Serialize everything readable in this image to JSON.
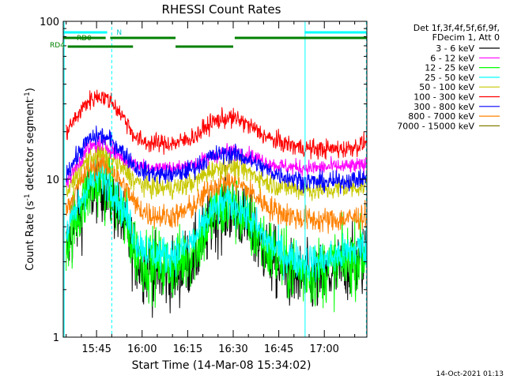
{
  "chart_data": {
    "type": "line",
    "title": "RHESSI Count Rates",
    "xlabel": "Start Time (14-Mar-08 15:34:02)",
    "ylabel_parts": [
      "Count Rate (s",
      "-1",
      " detector segment",
      "-1",
      ")"
    ],
    "yscale": "log",
    "ylim": [
      1,
      100
    ],
    "x_tick_labels": [
      "15:45",
      "16:00",
      "16:15",
      "16:30",
      "16:45",
      "17:00"
    ],
    "y_tick_labels": [
      "1",
      "10",
      "100"
    ],
    "time_axis": {
      "start": "15:34:02",
      "end": "17:14:00"
    },
    "legend_header": [
      "Det 1f,3f,4f,5f,6f,9f,",
      "FDecim 1, Att 0"
    ],
    "series": [
      {
        "name": "3 - 6 keV",
        "color": "#000000",
        "noise": 0.22,
        "profile": [
          [
            "15:35",
            3.6
          ],
          [
            "15:42",
            7.8
          ],
          [
            "15:46",
            9.5
          ],
          [
            "15:50",
            7.5
          ],
          [
            "15:55",
            4.5
          ],
          [
            "15:58",
            3.2
          ],
          [
            "16:02",
            2.6
          ],
          [
            "16:07",
            2.5
          ],
          [
            "16:12",
            2.6
          ],
          [
            "16:18",
            3.4
          ],
          [
            "16:23",
            5.5
          ],
          [
            "16:28",
            6.5
          ],
          [
            "16:32",
            6.0
          ],
          [
            "16:37",
            4.4
          ],
          [
            "16:42",
            3.2
          ],
          [
            "16:47",
            2.6
          ],
          [
            "16:53",
            2.3
          ],
          [
            "16:58",
            2.3
          ],
          [
            "17:03",
            2.5
          ],
          [
            "17:07",
            2.8
          ],
          [
            "17:12",
            3.0
          ],
          [
            "17:14",
            3.2
          ]
        ]
      },
      {
        "name": "6 - 12 keV",
        "color": "#ff00ff",
        "noise": 0.05,
        "profile": [
          [
            "15:35",
            9.5
          ],
          [
            "15:42",
            15.5
          ],
          [
            "15:46",
            17.0
          ],
          [
            "15:50",
            15.5
          ],
          [
            "15:55",
            13.0
          ],
          [
            "15:58",
            12.5
          ],
          [
            "16:02",
            12.0
          ],
          [
            "16:07",
            11.8
          ],
          [
            "16:12",
            11.8
          ],
          [
            "16:18",
            12.5
          ],
          [
            "16:23",
            14.0
          ],
          [
            "16:28",
            15.0
          ],
          [
            "16:32",
            14.8
          ],
          [
            "16:37",
            13.8
          ],
          [
            "16:42",
            12.5
          ],
          [
            "16:47",
            12.0
          ],
          [
            "16:53",
            11.8
          ],
          [
            "16:58",
            11.8
          ],
          [
            "17:03",
            12.0
          ],
          [
            "17:07",
            12.0
          ],
          [
            "17:12",
            12.2
          ],
          [
            "17:14",
            12.3
          ]
        ]
      },
      {
        "name": "12 - 25 keV",
        "color": "#00ff00",
        "noise": 0.22,
        "profile": [
          [
            "15:35",
            4.0
          ],
          [
            "15:42",
            8.3
          ],
          [
            "15:46",
            10.0
          ],
          [
            "15:50",
            8.2
          ],
          [
            "15:55",
            5.0
          ],
          [
            "15:58",
            3.5
          ],
          [
            "16:02",
            3.0
          ],
          [
            "16:07",
            2.8
          ],
          [
            "16:12",
            2.9
          ],
          [
            "16:18",
            3.8
          ],
          [
            "16:23",
            5.8
          ],
          [
            "16:28",
            6.8
          ],
          [
            "16:32",
            6.3
          ],
          [
            "16:37",
            4.7
          ],
          [
            "16:42",
            3.5
          ],
          [
            "16:47",
            2.9
          ],
          [
            "16:53",
            2.6
          ],
          [
            "16:58",
            2.6
          ],
          [
            "17:03",
            2.8
          ],
          [
            "17:07",
            3.0
          ],
          [
            "17:12",
            3.3
          ],
          [
            "17:14",
            3.5
          ]
        ]
      },
      {
        "name": "25 - 50 keV",
        "color": "#00ffff",
        "noise": 0.12,
        "profile": [
          [
            "15:35",
            4.6
          ],
          [
            "15:42",
            9.0
          ],
          [
            "15:46",
            10.8
          ],
          [
            "15:50",
            9.0
          ],
          [
            "15:55",
            5.8
          ],
          [
            "15:58",
            4.1
          ],
          [
            "16:02",
            3.5
          ],
          [
            "16:07",
            3.3
          ],
          [
            "16:12",
            3.4
          ],
          [
            "16:18",
            4.3
          ],
          [
            "16:23",
            6.3
          ],
          [
            "16:28",
            7.2
          ],
          [
            "16:32",
            6.7
          ],
          [
            "16:37",
            5.1
          ],
          [
            "16:42",
            3.9
          ],
          [
            "16:47",
            3.3
          ],
          [
            "16:53",
            3.0
          ],
          [
            "16:58",
            3.0
          ],
          [
            "17:03",
            3.2
          ],
          [
            "17:07",
            3.4
          ],
          [
            "17:12",
            3.7
          ],
          [
            "17:14",
            3.8
          ]
        ]
      },
      {
        "name": "50 - 100 keV",
        "color": "#c8c800",
        "noise": 0.07,
        "profile": [
          [
            "15:35",
            8.2
          ],
          [
            "15:42",
            13.5
          ],
          [
            "15:46",
            14.6
          ],
          [
            "15:50",
            13.5
          ],
          [
            "15:55",
            11.0
          ],
          [
            "15:58",
            9.6
          ],
          [
            "16:02",
            9.0
          ],
          [
            "16:07",
            8.8
          ],
          [
            "16:12",
            8.9
          ],
          [
            "16:18",
            9.8
          ],
          [
            "16:23",
            11.5
          ],
          [
            "16:28",
            12.1
          ],
          [
            "16:32",
            11.8
          ],
          [
            "16:37",
            10.6
          ],
          [
            "16:42",
            9.4
          ],
          [
            "16:47",
            8.9
          ],
          [
            "16:53",
            8.6
          ],
          [
            "16:58",
            8.5
          ],
          [
            "17:03",
            8.6
          ],
          [
            "17:07",
            8.8
          ],
          [
            "17:12",
            9.0
          ],
          [
            "17:14",
            9.1
          ]
        ]
      },
      {
        "name": "100 - 300 keV",
        "color": "#ff0000",
        "noise": 0.06,
        "profile": [
          [
            "15:35",
            20.0
          ],
          [
            "15:42",
            31.0
          ],
          [
            "15:46",
            34.0
          ],
          [
            "15:50",
            31.0
          ],
          [
            "15:55",
            23.0
          ],
          [
            "15:58",
            18.0
          ],
          [
            "16:02",
            17.0
          ],
          [
            "16:07",
            16.8
          ],
          [
            "16:12",
            17.0
          ],
          [
            "16:18",
            19.0
          ],
          [
            "16:23",
            23.0
          ],
          [
            "16:28",
            24.5
          ],
          [
            "16:32",
            23.8
          ],
          [
            "16:37",
            20.8
          ],
          [
            "16:42",
            18.0
          ],
          [
            "16:47",
            16.8
          ],
          [
            "16:53",
            15.8
          ],
          [
            "16:58",
            15.5
          ],
          [
            "17:03",
            15.5
          ],
          [
            "17:07",
            15.6
          ],
          [
            "17:12",
            16.5
          ],
          [
            "17:14",
            17.5
          ]
        ]
      },
      {
        "name": "300 - 800 keV",
        "color": "#0000ff",
        "noise": 0.06,
        "profile": [
          [
            "15:35",
            11.0
          ],
          [
            "15:42",
            17.5
          ],
          [
            "15:46",
            19.0
          ],
          [
            "15:50",
            17.5
          ],
          [
            "15:55",
            14.0
          ],
          [
            "15:58",
            11.8
          ],
          [
            "16:02",
            11.0
          ],
          [
            "16:07",
            10.7
          ],
          [
            "16:12",
            10.8
          ],
          [
            "16:18",
            12.0
          ],
          [
            "16:23",
            14.0
          ],
          [
            "16:28",
            14.6
          ],
          [
            "16:32",
            14.2
          ],
          [
            "16:37",
            12.7
          ],
          [
            "16:42",
            11.2
          ],
          [
            "16:47",
            10.4
          ],
          [
            "16:53",
            9.8
          ],
          [
            "16:58",
            9.6
          ],
          [
            "17:03",
            9.6
          ],
          [
            "17:07",
            9.8
          ],
          [
            "17:12",
            10.0
          ],
          [
            "17:14",
            10.2
          ]
        ]
      },
      {
        "name": "800 - 7000 keV",
        "color": "#ff8000",
        "noise": 0.08,
        "profile": [
          [
            "15:35",
            6.5
          ],
          [
            "15:42",
            11.5
          ],
          [
            "15:46",
            12.8
          ],
          [
            "15:50",
            11.5
          ],
          [
            "15:55",
            8.5
          ],
          [
            "15:58",
            6.8
          ],
          [
            "16:02",
            6.0
          ],
          [
            "16:07",
            5.8
          ],
          [
            "16:12",
            5.9
          ],
          [
            "16:18",
            7.0
          ],
          [
            "16:23",
            9.0
          ],
          [
            "16:28",
            9.7
          ],
          [
            "16:32",
            9.3
          ],
          [
            "16:37",
            7.9
          ],
          [
            "16:42",
            6.6
          ],
          [
            "16:47",
            6.0
          ],
          [
            "16:53",
            5.6
          ],
          [
            "16:58",
            5.5
          ],
          [
            "17:03",
            5.5
          ],
          [
            "17:07",
            5.6
          ],
          [
            "17:12",
            5.8
          ],
          [
            "17:14",
            5.9
          ]
        ]
      },
      {
        "name": "7000 - 15000 keV",
        "color": "#808000",
        "noise": 0.0,
        "profile": []
      }
    ],
    "attenuator_bars": [
      {
        "label": "",
        "color": "#00ffff",
        "segments": [
          [
            "15:34:02",
            "15:48:30"
          ],
          [
            "16:53:30",
            "17:14:00"
          ]
        ]
      }
    ],
    "flag_bars": [
      {
        "label": "RD0",
        "color": "#008000",
        "segments": [
          [
            "15:34:02",
            "15:48:00"
          ],
          [
            "15:49:30",
            "16:11:00"
          ],
          [
            "16:30:30",
            "17:14:00"
          ]
        ]
      },
      {
        "label": "RD4",
        "color": "#008000",
        "segments": [
          [
            "15:35:30",
            "15:57:00"
          ],
          [
            "16:11:00",
            "16:30:00"
          ]
        ]
      }
    ],
    "markers": [
      {
        "label": "N",
        "time": "15:50:00"
      }
    ],
    "vlines": [
      {
        "time": "15:34:20",
        "color": "#00ffff",
        "style": "solid"
      },
      {
        "time": "15:50:00",
        "color": "#00ffff",
        "style": "dashed"
      },
      {
        "time": "16:53:40",
        "color": "#00ffff",
        "style": "solid"
      },
      {
        "time": "17:13:50",
        "color": "#00ffff",
        "style": "dashed"
      }
    ],
    "grid": false,
    "legend_position": "right"
  },
  "timestamp": "14-Oct-2021 01:13"
}
